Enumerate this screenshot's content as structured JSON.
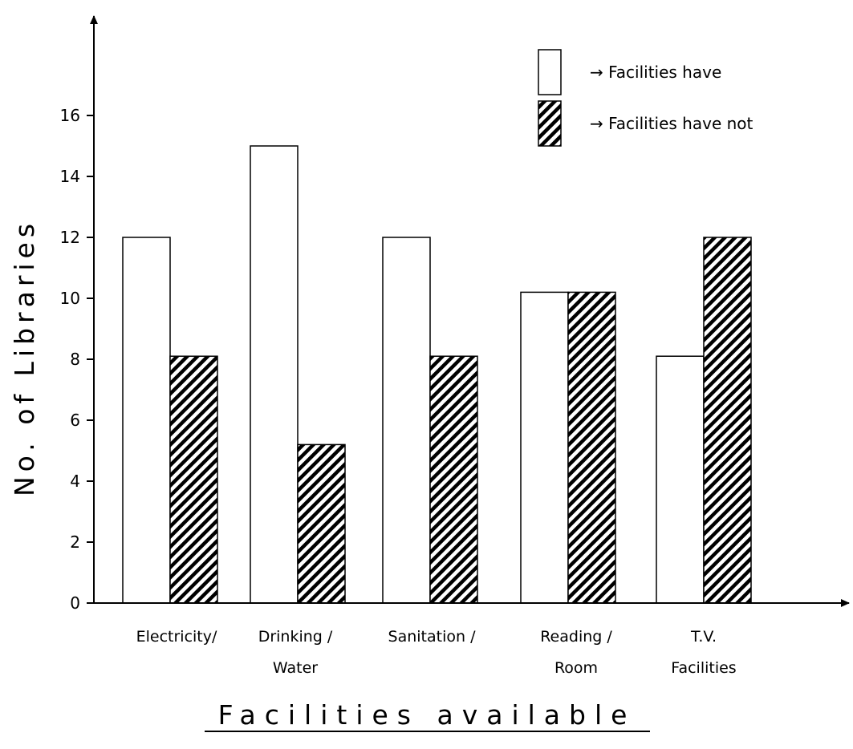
{
  "chart_data": {
    "type": "bar",
    "title": "",
    "xlabel": "Facilities available",
    "ylabel": "No. of Libraries",
    "ylim": [
      0,
      18
    ],
    "yticks": [
      0,
      2,
      4,
      6,
      8,
      10,
      12,
      14,
      16
    ],
    "grid": false,
    "legend_placement": "top-right",
    "categories": [
      {
        "lines": [
          "Electricity/"
        ]
      },
      {
        "lines": [
          "Drinking /",
          "Water"
        ]
      },
      {
        "lines": [
          "Sanitation /"
        ]
      },
      {
        "lines": [
          "Reading /",
          "Room"
        ]
      },
      {
        "lines": [
          "T.V.",
          "Facilities"
        ]
      }
    ],
    "series": [
      {
        "name": "→ Facilities have",
        "fill": "white",
        "values": [
          12,
          15,
          12,
          10.2,
          8.1
        ]
      },
      {
        "name": "→ Facilities have not",
        "fill": "hatched",
        "values": [
          8.1,
          5.2,
          8.1,
          10.2,
          12
        ]
      }
    ],
    "colors": {
      "stroke": "#000000",
      "background": "#ffffff"
    }
  }
}
